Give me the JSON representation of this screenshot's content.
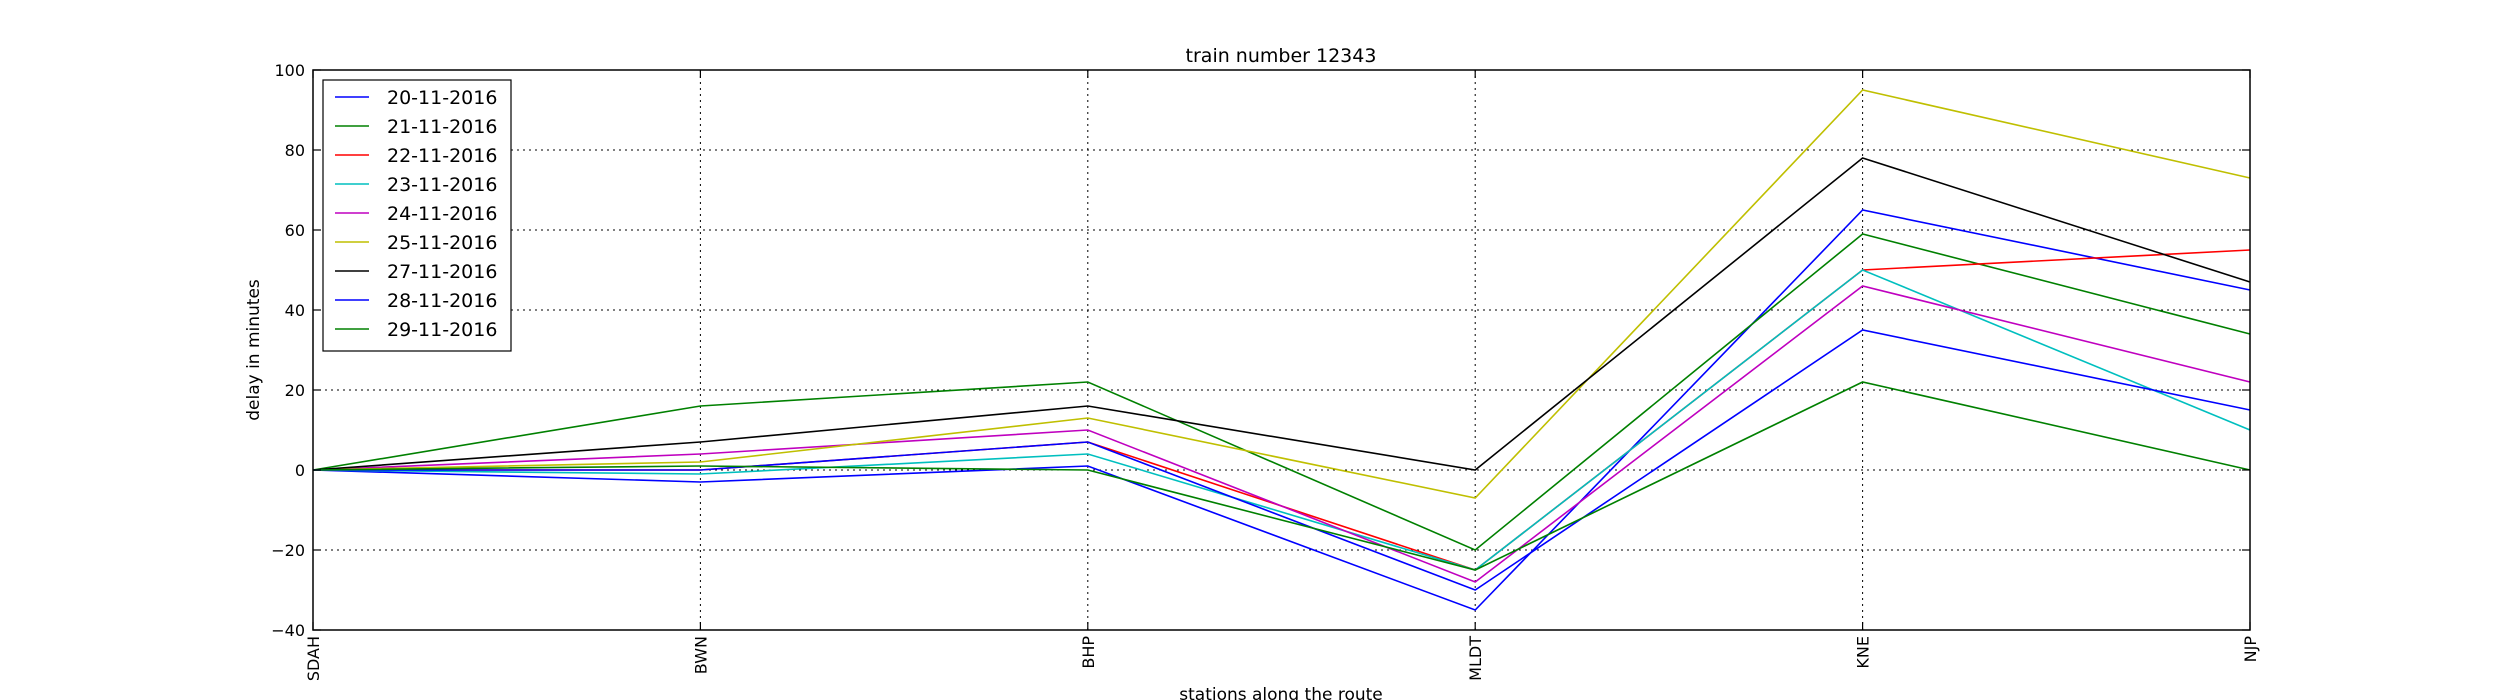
{
  "chart_data": {
    "type": "line",
    "title": "train number 12343",
    "xlabel": "stations along the route",
    "ylabel": "delay in minutes",
    "categories": [
      "SDAH",
      "BWN",
      "BHP",
      "MLDT",
      "KNE",
      "NJP"
    ],
    "ylim": [
      -40,
      100
    ],
    "yticks": [
      -40,
      -20,
      0,
      20,
      40,
      60,
      80,
      100
    ],
    "ytick_labels": [
      "−40",
      "−20",
      "0",
      "20",
      "40",
      "60",
      "80",
      "100"
    ],
    "grid": true,
    "legend_position": "top-left",
    "series": [
      {
        "name": "20-11-2016",
        "color": "#0000ff",
        "values": [
          0,
          -3,
          1,
          -35,
          65,
          45
        ]
      },
      {
        "name": "21-11-2016",
        "color": "#008000",
        "values": [
          0,
          16,
          22,
          -20,
          59,
          34
        ]
      },
      {
        "name": "22-11-2016",
        "color": "#ff0000",
        "values": [
          0,
          0,
          7,
          -25,
          50,
          55
        ]
      },
      {
        "name": "23-11-2016",
        "color": "#00bfbf",
        "values": [
          0,
          -1,
          4,
          -25,
          50,
          10
        ]
      },
      {
        "name": "24-11-2016",
        "color": "#bf00bf",
        "values": [
          0,
          4,
          10,
          -28,
          46,
          22
        ]
      },
      {
        "name": "25-11-2016",
        "color": "#bfbf00",
        "values": [
          0,
          2,
          13,
          -7,
          95,
          73
        ]
      },
      {
        "name": "27-11-2016",
        "color": "#000000",
        "values": [
          0,
          7,
          16,
          0,
          78,
          47
        ]
      },
      {
        "name": "28-11-2016",
        "color": "#0000ff",
        "values": [
          0,
          0,
          7,
          -30,
          35,
          15
        ]
      },
      {
        "name": "29-11-2016",
        "color": "#008000",
        "values": [
          0,
          1,
          0,
          -25,
          22,
          0
        ]
      }
    ]
  }
}
